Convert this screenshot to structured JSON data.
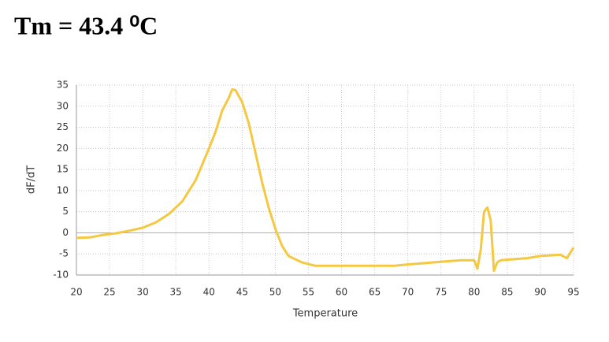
{
  "chart_data": {
    "type": "line",
    "title": "Tm = 43.4 ⁰C",
    "x_label": "Temperature",
    "y_label": "dF/dT",
    "x": [
      20,
      22,
      24,
      26,
      28,
      30,
      32,
      34,
      36,
      38,
      40,
      41,
      42,
      43,
      43.5,
      44,
      45,
      46,
      47,
      48,
      49,
      50,
      51,
      52,
      54,
      56,
      60,
      64,
      68,
      70,
      74,
      78,
      80,
      80.5,
      81,
      81.5,
      82,
      82.5,
      83,
      83.5,
      84,
      88,
      90,
      93,
      94,
      95
    ],
    "values": [
      -1.2,
      -1.1,
      -0.5,
      -0.1,
      0.5,
      1.2,
      2.5,
      4.5,
      7.5,
      12.5,
      20,
      24,
      29,
      32,
      34,
      33.8,
      31,
      26,
      19,
      12,
      6,
      1,
      -3,
      -5.5,
      -7,
      -7.8,
      -7.8,
      -7.8,
      -7.8,
      -7.5,
      -7,
      -6.5,
      -6.5,
      -8.5,
      -4,
      5,
      6,
      3,
      -9,
      -7,
      -6.5,
      -6,
      -5.5,
      -5.2,
      -6,
      -3.5
    ],
    "color": "#f5c842",
    "xlim": [
      20,
      95
    ],
    "xticks": [
      20,
      25,
      30,
      35,
      40,
      45,
      50,
      55,
      60,
      65,
      70,
      75,
      80,
      85,
      90,
      95
    ],
    "ylim": [
      -10,
      35
    ],
    "yticks": [
      -10,
      -5,
      0,
      5,
      10,
      15,
      20,
      25,
      30,
      35
    ],
    "grid": true
  }
}
